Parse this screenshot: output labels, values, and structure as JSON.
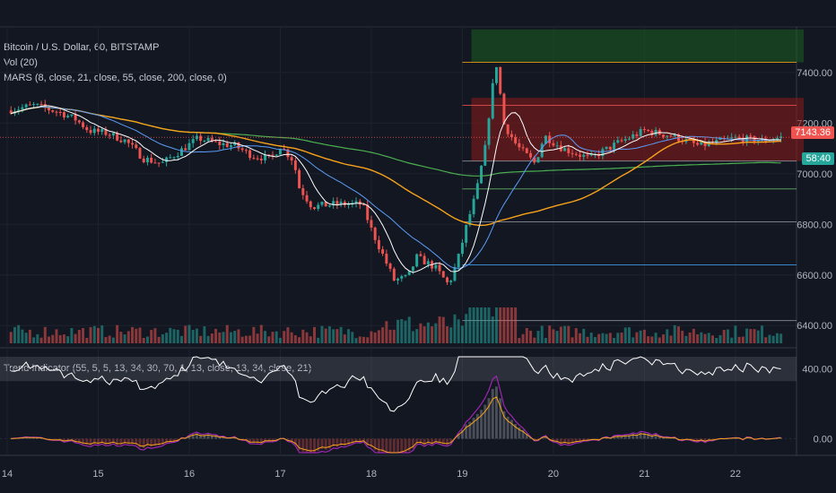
{
  "legend": {
    "symbol": "Bitcoin / U.S. Dollar, 60, BITSTAMP",
    "volume": "Vol (20)",
    "mars": "MARS (8, close, 21, close, 55, close, 200, close, 0)",
    "trend": "Trend Indicator (55, 5, 5, 13, 34, 30, 70, 1, 13, close, 13, 34, close, 21)"
  },
  "badges": {
    "last_price": "7143.36",
    "countdown": "58:40",
    "last_color": "#ef5350",
    "countdown_color": "#26a69a"
  },
  "colors": {
    "background": "#131722",
    "up": "#26a69a",
    "down": "#ef5350",
    "ma8": "#ffffff",
    "ma21": "#5b9cf6",
    "ma55": "#f7a21b",
    "ma200": "#4caf50",
    "zone_green": "#1b5e20",
    "zone_red": "#8b1a1a"
  },
  "chart_data": {
    "type": "candlestick",
    "symbol": "Bitcoin / U.S. Dollar",
    "interval": "60",
    "exchange": "BITSTAMP",
    "price_axis": {
      "range": [
        6330,
        7580
      ],
      "ticks": [
        6400,
        6600,
        6800,
        7000,
        7200,
        7400
      ],
      "labels": [
        "6400.00",
        "6600.00",
        "6800.00",
        "7000.00",
        "7200.00",
        "7400.00"
      ]
    },
    "x_axis": {
      "range": [
        14,
        22.75
      ],
      "ticks": [
        14,
        15,
        16,
        17,
        18,
        19,
        20,
        21,
        22
      ],
      "labels": [
        "14",
        "15",
        "16",
        "17",
        "18",
        "19",
        "20",
        "21",
        "22"
      ]
    },
    "price_path": [
      [
        14.0,
        7250
      ],
      [
        14.3,
        7270
      ],
      [
        14.6,
        7240
      ],
      [
        14.75,
        7215
      ],
      [
        14.9,
        7170
      ],
      [
        15.1,
        7160
      ],
      [
        15.3,
        7130
      ],
      [
        15.5,
        7060
      ],
      [
        15.7,
        7040
      ],
      [
        15.9,
        7090
      ],
      [
        16.1,
        7140
      ],
      [
        16.3,
        7120
      ],
      [
        16.5,
        7110
      ],
      [
        16.7,
        7070
      ],
      [
        16.9,
        7060
      ],
      [
        17.0,
        7110
      ],
      [
        17.15,
        7050
      ],
      [
        17.2,
        6950
      ],
      [
        17.35,
        6870
      ],
      [
        17.6,
        6880
      ],
      [
        17.9,
        6880
      ],
      [
        18.0,
        6780
      ],
      [
        18.1,
        6700
      ],
      [
        18.25,
        6580
      ],
      [
        18.4,
        6590
      ],
      [
        18.5,
        6670
      ],
      [
        18.7,
        6630
      ],
      [
        18.85,
        6560
      ],
      [
        18.95,
        6660
      ],
      [
        19.05,
        6800
      ],
      [
        19.15,
        6920
      ],
      [
        19.25,
        7100
      ],
      [
        19.32,
        7320
      ],
      [
        19.38,
        7440
      ],
      [
        19.45,
        7200
      ],
      [
        19.6,
        7110
      ],
      [
        19.8,
        7040
      ],
      [
        19.9,
        7150
      ],
      [
        20.1,
        7100
      ],
      [
        20.4,
        7060
      ],
      [
        20.7,
        7120
      ],
      [
        21.0,
        7170
      ],
      [
        21.3,
        7150
      ],
      [
        21.6,
        7110
      ],
      [
        22.0,
        7140
      ],
      [
        22.3,
        7130
      ],
      [
        22.5,
        7143.36
      ]
    ],
    "zones": [
      {
        "name": "green-zone",
        "x": [
          19.1,
          22.75
        ],
        "y": [
          7440,
          7570
        ]
      },
      {
        "name": "red-zone",
        "x": [
          19.1,
          22.75
        ],
        "y": [
          7050,
          7300
        ]
      }
    ],
    "levels": [
      6420,
      6640,
      6810,
      6940,
      7050,
      7270,
      7440
    ],
    "volume": {
      "range": [
        0,
        120
      ]
    },
    "trend_indicator": {
      "ticks": [
        400,
        0
      ],
      "labels": [
        "400.00",
        "0.00"
      ],
      "range": [
        -80,
        470
      ]
    },
    "last_price": 7143.36
  }
}
